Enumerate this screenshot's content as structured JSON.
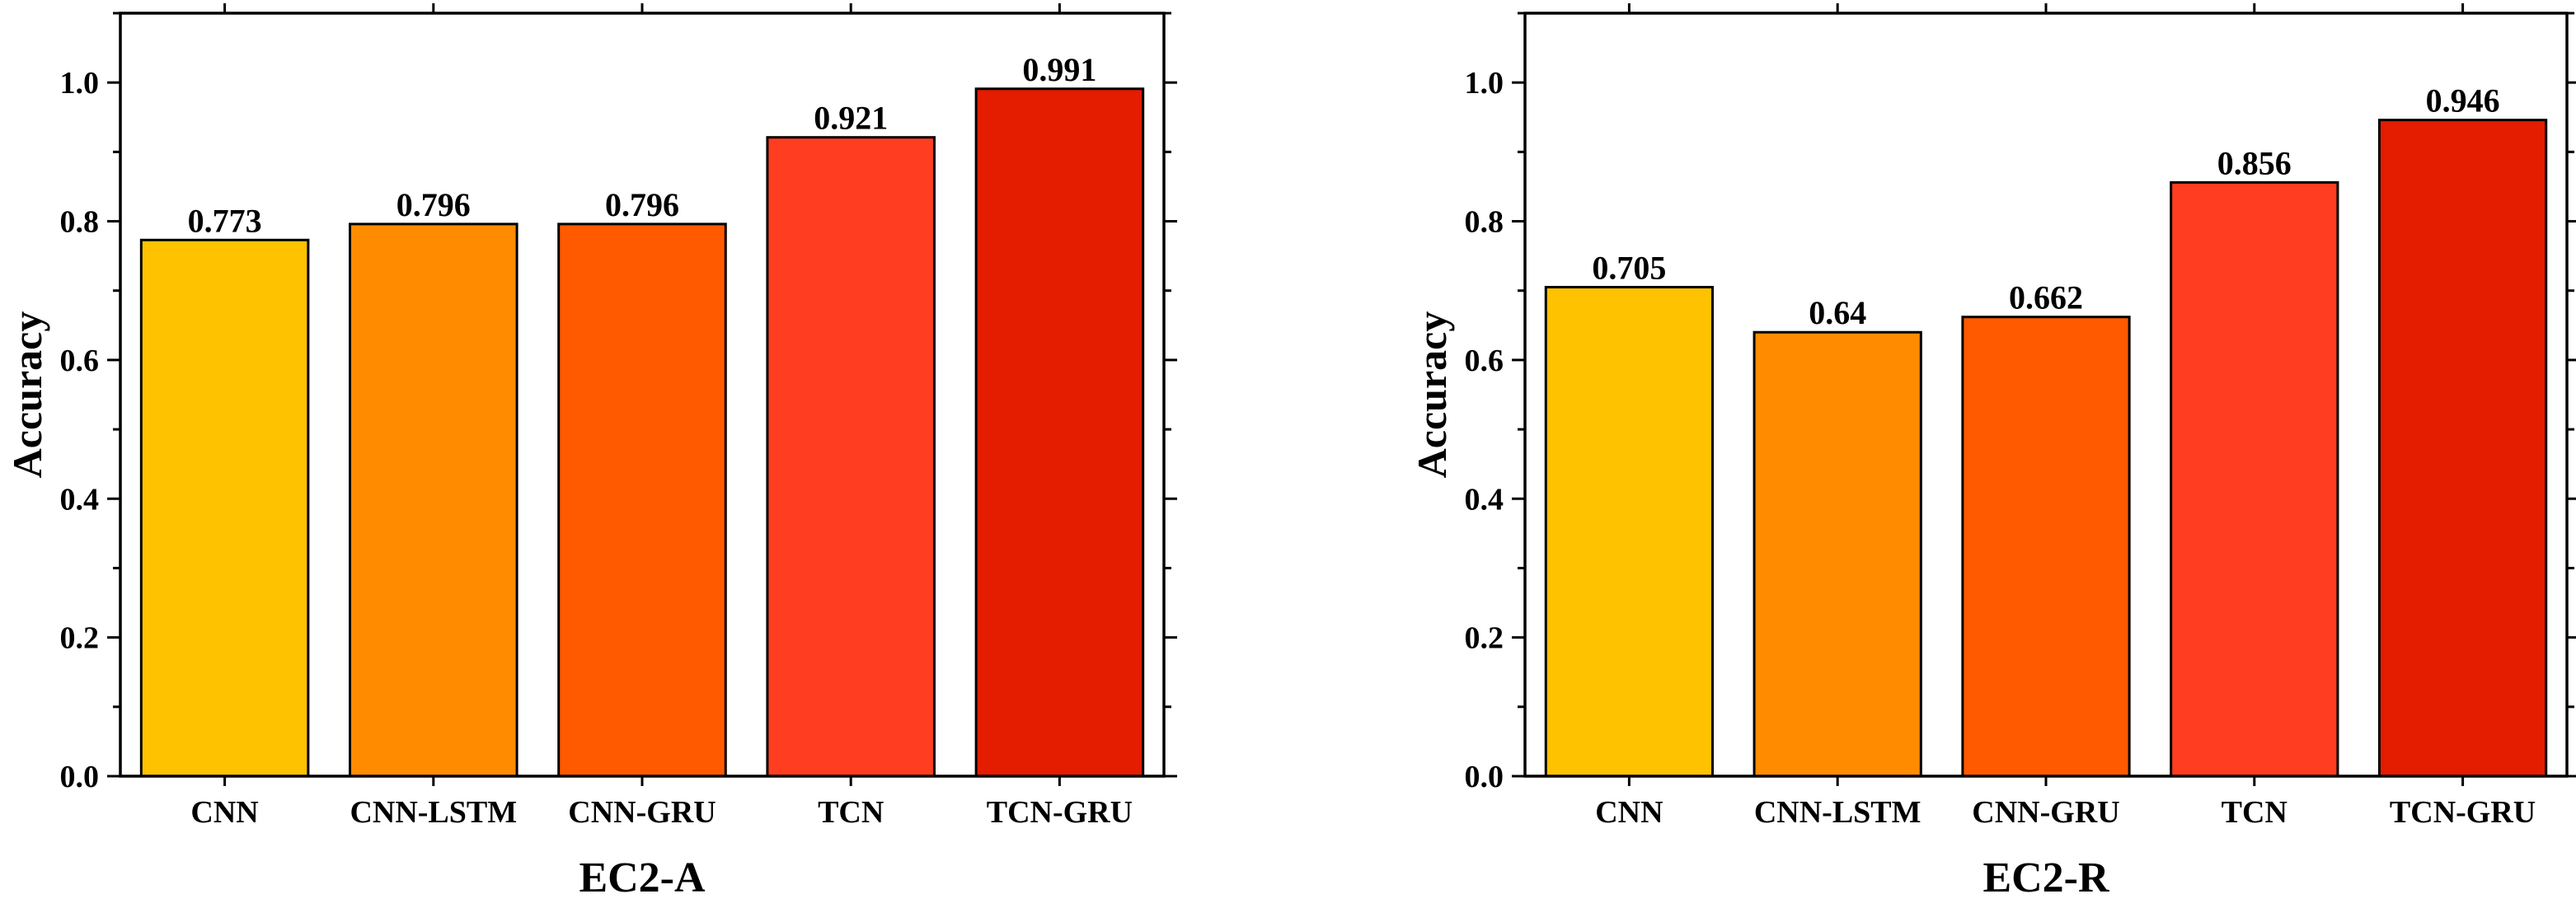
{
  "chart_data": [
    {
      "type": "bar",
      "categories": [
        "CNN",
        "CNN-LSTM",
        "CNN-GRU",
        "TCN",
        "TCN-GRU"
      ],
      "values": [
        0.773,
        0.796,
        0.796,
        0.921,
        0.991
      ],
      "value_labels": [
        "0.773",
        "0.796",
        "0.796",
        "0.921",
        "0.991"
      ],
      "colors": [
        "#FFC200",
        "#FF8C00",
        "#FF5A00",
        "#FF3D20",
        "#E41C00"
      ],
      "xlabel": "EC2-A",
      "ylabel": "Accuracy",
      "ylim": [
        0,
        1.1
      ],
      "yticks": [
        0.0,
        0.2,
        0.4,
        0.6,
        0.8,
        1.0
      ],
      "ytick_labels": [
        "0.0",
        "0.2",
        "0.4",
        "0.6",
        "0.8",
        "1.0"
      ],
      "grid": false
    },
    {
      "type": "bar",
      "categories": [
        "CNN",
        "CNN-LSTM",
        "CNN-GRU",
        "TCN",
        "TCN-GRU"
      ],
      "values": [
        0.705,
        0.64,
        0.662,
        0.856,
        0.946
      ],
      "value_labels": [
        "0.705",
        "0.64",
        "0.662",
        "0.856",
        "0.946"
      ],
      "colors": [
        "#FFC200",
        "#FF8C00",
        "#FF5A00",
        "#FF3D20",
        "#E41C00"
      ],
      "xlabel": "EC2-R",
      "ylabel": "Accuracy",
      "ylim": [
        0,
        1.1
      ],
      "yticks": [
        0.0,
        0.2,
        0.4,
        0.6,
        0.8,
        1.0
      ],
      "ytick_labels": [
        "0.0",
        "0.2",
        "0.4",
        "0.6",
        "0.8",
        "1.0"
      ],
      "grid": false
    }
  ]
}
